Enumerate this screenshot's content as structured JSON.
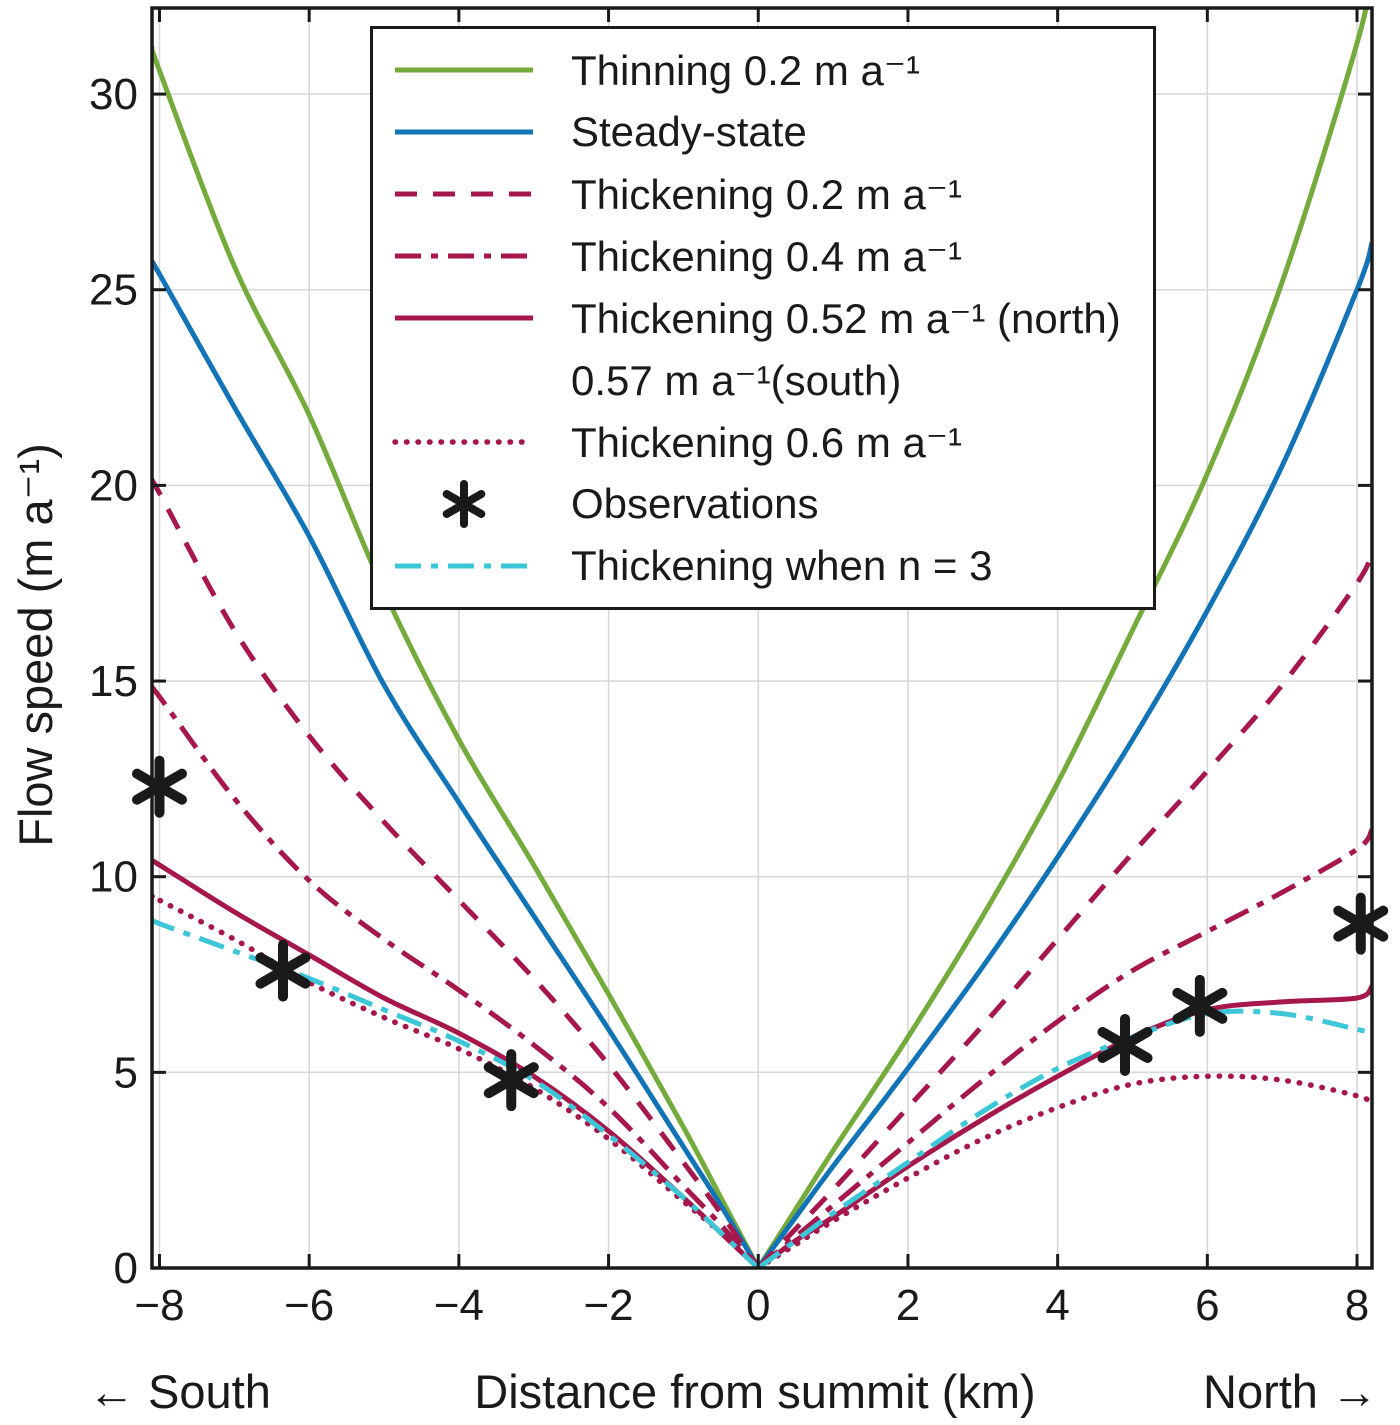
{
  "chart_data": {
    "type": "line",
    "title": "",
    "xlabel": "Distance from summit (km)",
    "ylabel": "Flow speed (m a⁻¹)",
    "direction_labels": {
      "left": "← South",
      "right": "North →"
    },
    "xlim": [
      -8.1,
      8.2
    ],
    "ylim": [
      0,
      32.2
    ],
    "x_ticks": [
      -8,
      -6,
      -4,
      -2,
      0,
      2,
      4,
      6,
      8
    ],
    "y_ticks": [
      0,
      5,
      10,
      15,
      20,
      25,
      30
    ],
    "grid": true,
    "legend_position": "top-center",
    "axis_color": "#1a1a1a",
    "grid_color": "#d8d8d8",
    "line_width": 5,
    "x": [
      -8.1,
      -8,
      -7,
      -6,
      -5,
      -4,
      -3,
      -2,
      -1,
      -0.5,
      0,
      0.5,
      1,
      2,
      3,
      4,
      5,
      6,
      7,
      8,
      8.2
    ],
    "series": [
      {
        "name": "Thinning 0.2 m a⁻¹",
        "color": "#74ab3c",
        "style": "solid",
        "values": [
          31.2,
          30.6,
          25.6,
          21.8,
          17.3,
          13.5,
          10.3,
          7.0,
          3.6,
          1.8,
          0,
          1.5,
          3.0,
          5.9,
          9.0,
          12.4,
          16.3,
          20.3,
          25.2,
          31.3,
          33.2
        ]
      },
      {
        "name": "Steady-state",
        "color": "#1273b6",
        "style": "solid",
        "values": [
          25.7,
          25.4,
          22.0,
          18.7,
          14.9,
          11.9,
          9.0,
          6.1,
          3.1,
          1.6,
          0,
          1.3,
          2.6,
          5.1,
          7.7,
          10.5,
          13.5,
          16.8,
          20.5,
          25.0,
          26.2
        ]
      },
      {
        "name": "Thickening 0.2 m a⁻¹",
        "color": "#a6174b",
        "style": "dashed",
        "values": [
          20.1,
          19.8,
          16.3,
          13.6,
          11.4,
          9.4,
          7.4,
          5.2,
          2.7,
          1.4,
          0,
          1.0,
          2.0,
          4.1,
          6.2,
          8.4,
          10.6,
          12.7,
          14.9,
          17.5,
          18.3
        ]
      },
      {
        "name": "Thickening 0.4 m a⁻¹",
        "color": "#a6174b",
        "style": "dashdot",
        "values": [
          14.8,
          14.6,
          12.0,
          9.9,
          8.4,
          7.1,
          5.7,
          4.1,
          2.1,
          1.1,
          0,
          0.8,
          1.6,
          3.2,
          4.8,
          6.3,
          7.6,
          8.6,
          9.6,
          10.7,
          11.2
        ]
      },
      {
        "name": "Thickening 0.52 m a⁻¹ (north)",
        "name2": "0.57 m a⁻¹(south)",
        "color": "#a6174b",
        "style": "solid",
        "values": [
          10.4,
          10.3,
          9.1,
          8.0,
          6.9,
          6.0,
          4.9,
          3.5,
          1.8,
          0.9,
          0,
          0.7,
          1.3,
          2.6,
          3.8,
          4.9,
          5.9,
          6.6,
          6.8,
          6.9,
          7.2
        ]
      },
      {
        "name": "Thickening 0.6 m a⁻¹",
        "color": "#a6174b",
        "style": "dotted",
        "values": [
          9.5,
          9.4,
          8.4,
          7.3,
          6.4,
          5.6,
          4.6,
          3.3,
          1.7,
          0.9,
          0,
          0.6,
          1.2,
          2.3,
          3.3,
          4.1,
          4.7,
          4.9,
          4.8,
          4.4,
          4.2
        ]
      },
      {
        "name": "Observations",
        "color": "#1a1a1a",
        "style": "marker",
        "marker": "asterisk",
        "points": [
          [
            -8.0,
            12.3
          ],
          [
            -6.35,
            7.6
          ],
          [
            -3.3,
            4.8
          ],
          [
            4.9,
            5.7
          ],
          [
            5.9,
            6.7
          ],
          [
            8.05,
            8.8
          ]
        ]
      },
      {
        "name": "Thickening when n = 3",
        "color": "#3cc6d8",
        "style": "dashdot",
        "values": [
          8.9,
          8.8,
          8.1,
          7.4,
          6.6,
          5.8,
          4.8,
          3.4,
          1.8,
          0.9,
          0,
          0.7,
          1.4,
          2.7,
          4.0,
          5.1,
          5.9,
          6.5,
          6.5,
          6.1,
          6.0
        ]
      }
    ]
  }
}
